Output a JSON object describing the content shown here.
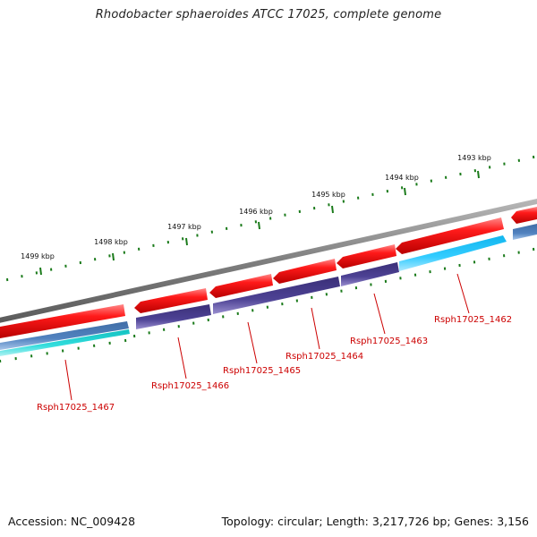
{
  "title": "Rhodobacter sphaeroides ATCC 17025, complete genome",
  "footer": {
    "accession": "Accession: NC_009428",
    "summary": "Topology: circular; Length: 3,217,726 bp; Genes: 3,156"
  },
  "colors": {
    "backbone": "#8a8a8a",
    "forward_cds": "#ee1111",
    "reverse_cds_dark": "#4a3f8c",
    "reverse_cds_steel": "#4a78b0",
    "reverse_cds_cyan": "#22c4ee",
    "reverse_cds_teal": "#22c8c8",
    "tick": "#1a7a1a",
    "gene_label": "#cc0000"
  },
  "scale": {
    "ticks": [
      {
        "label": "1493 kbp"
      },
      {
        "label": "1494 kbp"
      },
      {
        "label": "1495 kbp"
      },
      {
        "label": "1496 kbp"
      },
      {
        "label": "1497 kbp"
      },
      {
        "label": "1498 kbp"
      },
      {
        "label": "1499 kbp"
      }
    ]
  },
  "genes": [
    {
      "label": "Rsph17025_1462"
    },
    {
      "label": "Rsph17025_1463"
    },
    {
      "label": "Rsph17025_1464"
    },
    {
      "label": "Rsph17025_1465"
    },
    {
      "label": "Rsph17025_1466"
    },
    {
      "label": "Rsph17025_1467"
    }
  ]
}
